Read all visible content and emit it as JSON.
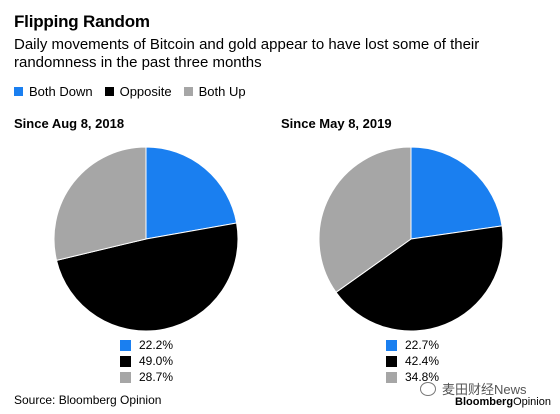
{
  "header": {
    "title": "Flipping Random",
    "subtitle": "Daily movements of Bitcoin and gold appear to have lost some of their randomness in the past three months"
  },
  "legend": {
    "items": [
      {
        "label": "Both Down",
        "color": "#1a7ff0"
      },
      {
        "label": "Opposite",
        "color": "#000000"
      },
      {
        "label": "Both Up",
        "color": "#a6a6a6"
      }
    ]
  },
  "chart_data": [
    {
      "type": "pie",
      "title": "Since Aug 8, 2018",
      "categories": [
        "Both Down",
        "Opposite",
        "Both Up"
      ],
      "values": [
        22.2,
        49.0,
        28.7
      ],
      "labels": [
        "22.2%",
        "49.0%",
        "28.7%"
      ],
      "colors": [
        "#1a7ff0",
        "#000000",
        "#a6a6a6"
      ]
    },
    {
      "type": "pie",
      "title": "Since May 8, 2019",
      "categories": [
        "Both Down",
        "Opposite",
        "Both Up"
      ],
      "values": [
        22.7,
        42.4,
        34.8
      ],
      "labels": [
        "22.7%",
        "42.4%",
        "34.8%"
      ],
      "colors": [
        "#1a7ff0",
        "#000000",
        "#a6a6a6"
      ]
    }
  ],
  "footer": {
    "source": "Source: Bloomberg Opinion",
    "watermark": "麦田财经News",
    "brand_main": "Bloomberg",
    "brand_sub": "Opinion"
  }
}
